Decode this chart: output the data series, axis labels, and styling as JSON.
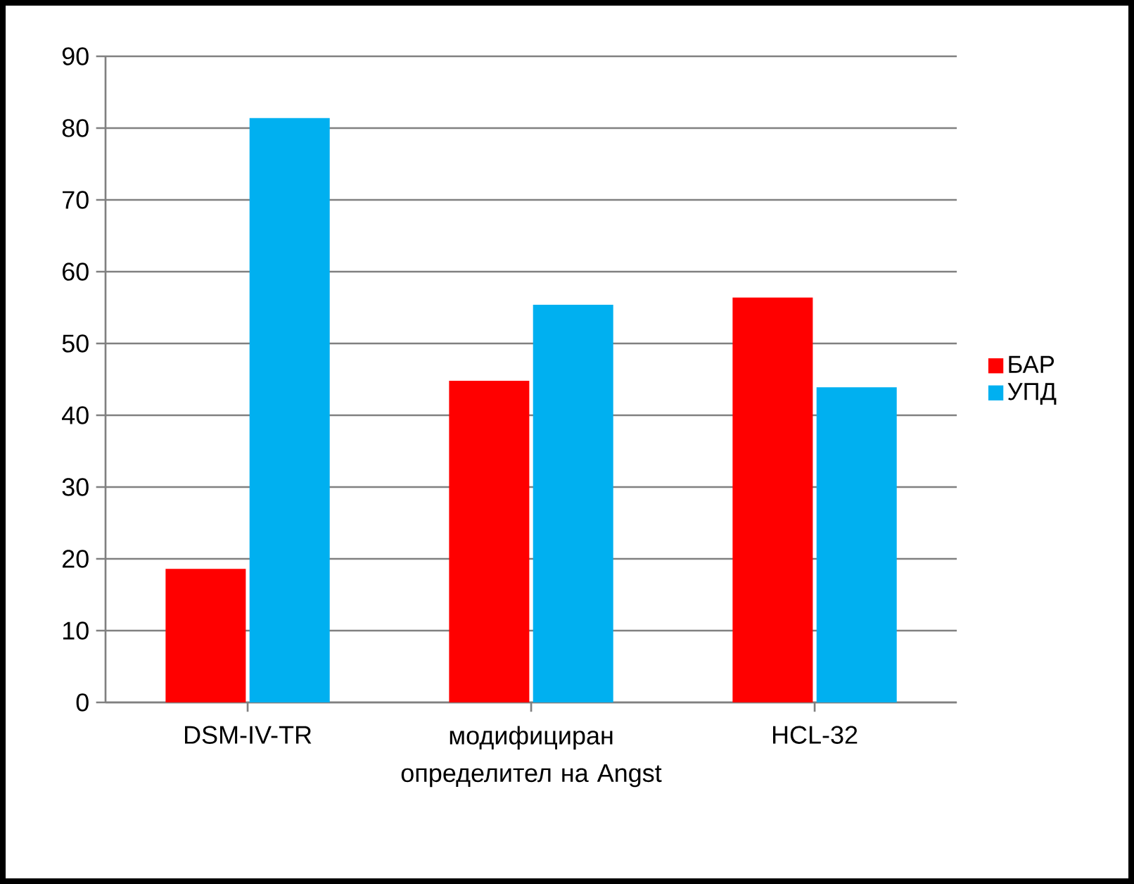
{
  "chart_data": {
    "type": "bar",
    "categories": [
      "DSM-IV-TR",
      "модифициран определител на Angst",
      "HCL-32"
    ],
    "series": [
      {
        "name": "БАР",
        "color": "#ff0000",
        "values": [
          18.6,
          44.8,
          56.4
        ]
      },
      {
        "name": "УПД",
        "color": "#00b0f0",
        "values": [
          81.4,
          55.4,
          43.9
        ]
      }
    ],
    "ylim": [
      0,
      90
    ],
    "yticks": [
      0,
      10,
      20,
      30,
      40,
      50,
      60,
      70,
      80,
      90
    ],
    "grid": "y",
    "legend": "right"
  }
}
